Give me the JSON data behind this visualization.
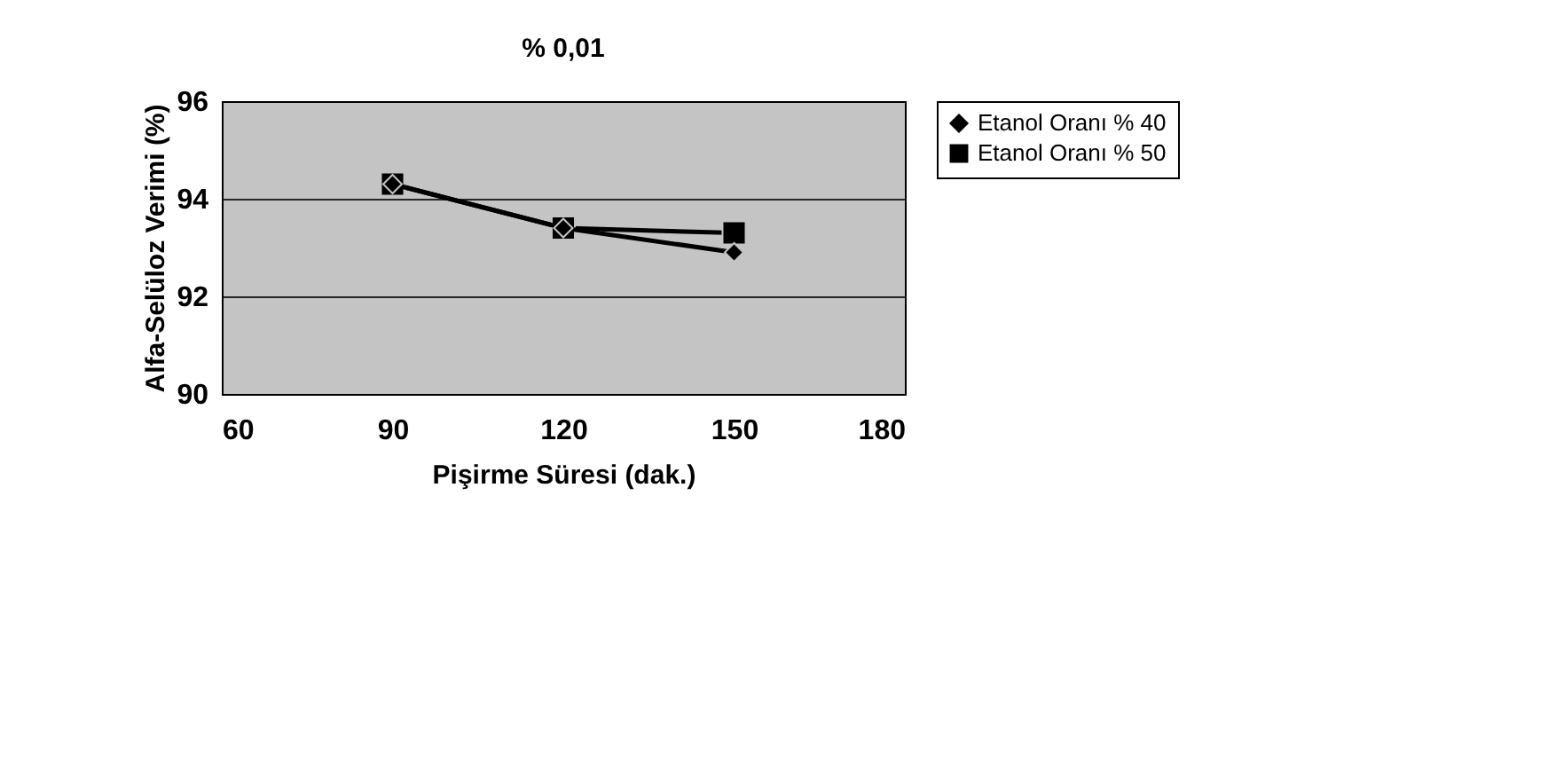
{
  "chart_data": {
    "type": "line",
    "title": "% 0,01",
    "xlabel": "Pişirme Süresi (dak.)",
    "ylabel": "Alfa-Selüloz Verimi (%)",
    "x": [
      90,
      120,
      150
    ],
    "series": [
      {
        "name": "Etanol Oranı % 40",
        "color": "#000000",
        "marker": "diamond",
        "values": [
          94.3,
          93.4,
          92.9
        ]
      },
      {
        "name": "Etanol Oranı % 50",
        "color": "#000000",
        "marker": "square",
        "values": [
          94.3,
          93.4,
          93.3
        ]
      }
    ],
    "xlim": [
      60,
      180
    ],
    "xticks": [
      60,
      90,
      120,
      150,
      180
    ],
    "ylim": [
      90,
      96
    ],
    "yticks": [
      90,
      92,
      94,
      96
    ],
    "grid": "y",
    "legend": "right",
    "line_style": "solid"
  }
}
